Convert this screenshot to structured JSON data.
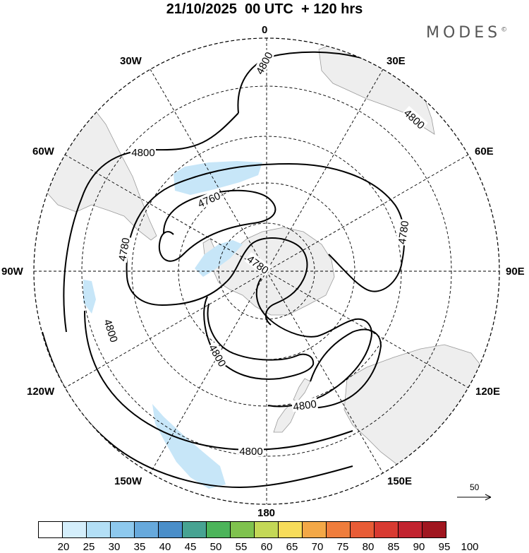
{
  "title": "21/10/2025  00 UTC  + 120 hrs",
  "brand": "MODES",
  "brand_mark": "©",
  "longitude_labels": {
    "l0": "0",
    "l30e": "30E",
    "l60e": "60E",
    "l90e": "90E",
    "l120e": "120E",
    "l150e": "150E",
    "l180": "180",
    "l150w": "150W",
    "l120w": "120W",
    "l90w": "90W",
    "l60w": "60W",
    "l30w": "30W"
  },
  "contour_labels": {
    "c1": "4800",
    "c2": "4800",
    "c3": "4800",
    "c4": "4760",
    "c5": "4780",
    "c6": "4780",
    "c7": "4780",
    "c8": "4800",
    "c9": "4800",
    "c10": "4800",
    "c11": "4800"
  },
  "vector_reference": "50",
  "colorbar": {
    "labels": [
      "20",
      "25",
      "30",
      "35",
      "40",
      "45",
      "50",
      "55",
      "60",
      "65",
      "70",
      "75",
      "80",
      "85",
      "90",
      "95",
      "100"
    ],
    "colors": [
      "#ffffff",
      "#d4eefb",
      "#b3dff6",
      "#8ec9ee",
      "#67a9dc",
      "#4a8ec9",
      "#47a392",
      "#4cb45a",
      "#7fc24e",
      "#c4d857",
      "#f7dc5a",
      "#f3a847",
      "#ef7d3c",
      "#e85c36",
      "#d83a31",
      "#c2232f",
      "#a0161f"
    ]
  },
  "colors": {
    "land": "#eeeeee",
    "wind_shading": "#c7e6f8",
    "contour": "#000000",
    "grid": "#000000"
  }
}
